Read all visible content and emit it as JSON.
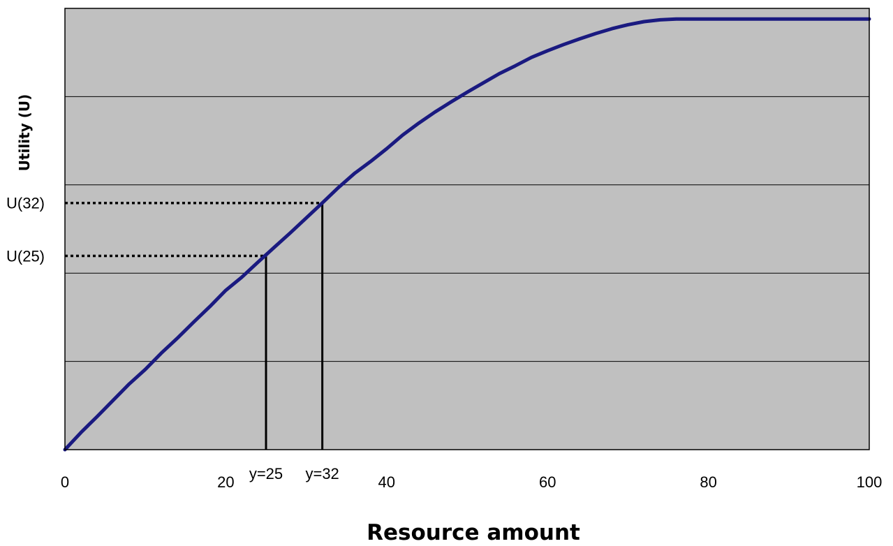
{
  "chart_data": {
    "type": "line",
    "title": "",
    "xlabel": "Resource amount",
    "ylabel": "Utility (U)",
    "xlim": [
      0,
      100
    ],
    "ylim": [
      0,
      100
    ],
    "x_ticks": [
      0,
      20,
      40,
      60,
      80,
      100
    ],
    "y_ticks": [
      0,
      20,
      40,
      60,
      80,
      100
    ],
    "grid": {
      "horizontal": true,
      "vertical": false
    },
    "legend": "none",
    "colors": {
      "plot_background": "#c0c0c0",
      "curve": "#1a1a80",
      "grid": "#000000",
      "markers": "#000000"
    },
    "series": [
      {
        "x": [
          0,
          2,
          4,
          6,
          8,
          10,
          12,
          14,
          16,
          18,
          20,
          22,
          24,
          26,
          28,
          30,
          32,
          34,
          36,
          38,
          40,
          42,
          44,
          46,
          48,
          50,
          52,
          54,
          56,
          58,
          60,
          62,
          64,
          66,
          68,
          70,
          72,
          74,
          76,
          78,
          80,
          85,
          90,
          95,
          100
        ],
        "y": [
          0,
          3.9,
          7.5,
          11.2,
          14.9,
          18.2,
          21.9,
          25.3,
          28.9,
          32.4,
          36.1,
          39.1,
          42.5,
          45.8,
          49.1,
          52.5,
          55.9,
          59.4,
          62.6,
          65.3,
          68.2,
          71.3,
          74.0,
          76.5,
          78.8,
          81.0,
          83.1,
          85.2,
          87.0,
          88.9,
          90.4,
          91.8,
          93.1,
          94.3,
          95.4,
          96.3,
          97.0,
          97.4,
          97.6,
          97.6,
          97.6,
          97.6,
          97.6,
          97.6,
          97.6
        ]
      }
    ],
    "annotations": [
      {
        "x": 25,
        "y": 43.9,
        "x_label": "y=25",
        "y_label": "U(25)"
      },
      {
        "x": 32,
        "y": 55.9,
        "x_label": "y=32",
        "y_label": "U(32)"
      }
    ]
  }
}
